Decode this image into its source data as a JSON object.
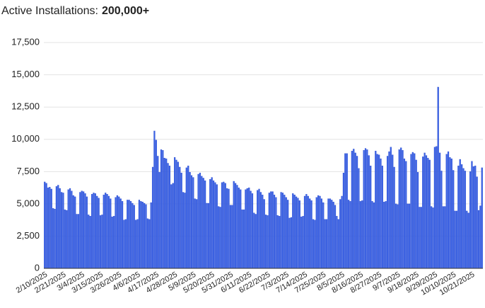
{
  "chart_data": {
    "type": "bar",
    "title": "Active Installations:",
    "total": "200,000+",
    "color": "#3b63e6",
    "grid": true,
    "ylim": [
      0,
      19700
    ],
    "yticks": [
      0,
      {
        "value": 2500,
        "label": "2,500"
      },
      {
        "value": 5000,
        "label": "5,000"
      },
      {
        "value": 7500,
        "label": "7,500"
      },
      {
        "value": 10000,
        "label": "10,000"
      },
      {
        "value": 12500,
        "label": "12,500"
      },
      {
        "value": 15000,
        "label": "15,000"
      },
      {
        "value": 17500,
        "label": "17,500"
      }
    ],
    "categories": [
      "2/10/2025",
      null,
      null,
      null,
      null,
      null,
      null,
      null,
      null,
      null,
      null,
      "2/21/2025",
      null,
      null,
      null,
      null,
      null,
      null,
      null,
      null,
      null,
      null,
      "3/4/2025",
      null,
      null,
      null,
      null,
      null,
      null,
      null,
      null,
      null,
      null,
      "3/15/2025",
      null,
      null,
      null,
      null,
      null,
      null,
      null,
      null,
      null,
      null,
      "3/26/2025",
      null,
      null,
      null,
      null,
      null,
      null,
      null,
      null,
      null,
      null,
      "4/6/2025",
      null,
      null,
      null,
      null,
      null,
      null,
      null,
      null,
      null,
      null,
      "4/17/2025",
      null,
      null,
      null,
      null,
      null,
      null,
      null,
      null,
      null,
      null,
      "4/28/2025",
      null,
      null,
      null,
      null,
      null,
      null,
      null,
      null,
      null,
      null,
      "5/9/2025",
      null,
      null,
      null,
      null,
      null,
      null,
      null,
      null,
      null,
      null,
      "5/20/2025",
      null,
      null,
      null,
      null,
      null,
      null,
      null,
      null,
      null,
      null,
      "5/31/2025",
      null,
      null,
      null,
      null,
      null,
      null,
      null,
      null,
      null,
      null,
      "6/11/2025",
      null,
      null,
      null,
      null,
      null,
      null,
      null,
      null,
      null,
      null,
      "6/22/2025",
      null,
      null,
      null,
      null,
      null,
      null,
      null,
      null,
      null,
      null,
      "7/3/2025",
      null,
      null,
      null,
      null,
      null,
      null,
      null,
      null,
      null,
      null,
      "7/14/2025",
      null,
      null,
      null,
      null,
      null,
      null,
      null,
      null,
      null,
      null,
      "7/25/2025",
      null,
      null,
      null,
      null,
      null,
      null,
      null,
      null,
      null,
      null,
      "8/5/2025",
      null,
      null,
      null,
      null,
      null,
      null,
      null,
      null,
      null,
      null,
      "8/16/2025",
      null,
      null,
      null,
      null,
      null,
      null,
      null,
      null,
      null,
      null,
      "8/27/2025",
      null,
      null,
      null,
      null,
      null,
      null,
      null,
      null,
      null,
      null,
      "9/7/2025",
      null,
      null,
      null,
      null,
      null,
      null,
      null,
      null,
      null,
      null,
      "9/18/2025",
      null,
      null,
      null,
      null,
      null,
      null,
      null,
      null,
      null,
      null,
      "9/29/2025",
      null,
      null,
      null,
      null,
      null,
      null,
      null,
      null,
      null,
      null,
      "10/10/2025",
      null,
      null,
      null,
      null,
      null,
      null,
      null,
      null,
      null,
      null,
      "10/21/2025",
      null,
      null,
      null,
      null,
      null,
      null
    ],
    "values": [
      6700,
      6600,
      6250,
      6300,
      6150,
      4650,
      4600,
      6350,
      6450,
      6200,
      5900,
      5850,
      4550,
      4500,
      6100,
      6200,
      6000,
      5650,
      5550,
      4200,
      4200,
      5900,
      6000,
      5950,
      5800,
      5550,
      4150,
      4050,
      5750,
      5850,
      5800,
      5600,
      5450,
      4100,
      4150,
      5700,
      5850,
      5750,
      5600,
      5400,
      4000,
      4050,
      5500,
      5650,
      5550,
      5400,
      5200,
      3750,
      3800,
      5300,
      5300,
      5200,
      5050,
      4900,
      3750,
      3800,
      5300,
      5200,
      5150,
      5050,
      4950,
      3850,
      3800,
      5100,
      7850,
      10650,
      9950,
      8700,
      7450,
      9200,
      9150,
      8550,
      8500,
      8150,
      7950,
      6500,
      6600,
      8600,
      8400,
      8250,
      7850,
      7400,
      5900,
      5850,
      7800,
      7950,
      7450,
      7200,
      7050,
      5400,
      5350,
      7300,
      7400,
      7150,
      7000,
      6800,
      5050,
      5050,
      6900,
      7050,
      6800,
      6650,
      6500,
      4800,
      4750,
      6650,
      6700,
      6600,
      6200,
      6150,
      4900,
      4900,
      6750,
      6600,
      6450,
      6250,
      6100,
      4550,
      4550,
      6100,
      6200,
      6250,
      6000,
      5800,
      4300,
      4200,
      6050,
      6150,
      5900,
      5700,
      5350,
      4150,
      4100,
      5850,
      5950,
      5950,
      5700,
      5500,
      4100,
      4050,
      5900,
      5850,
      5700,
      5500,
      5300,
      3900,
      3950,
      5800,
      5700,
      5550,
      5450,
      5250,
      4000,
      4050,
      5600,
      5750,
      5600,
      5400,
      5250,
      3800,
      3750,
      5500,
      5650,
      5600,
      5400,
      5100,
      3800,
      3800,
      5400,
      5400,
      5300,
      5150,
      4900,
      4050,
      3800,
      5350,
      5600,
      7400,
      8900,
      8900,
      5300,
      5200,
      9100,
      9250,
      8950,
      8700,
      7750,
      5200,
      5250,
      9150,
      9300,
      9200,
      8750,
      7950,
      5200,
      5100,
      9100,
      8850,
      8800,
      8500,
      7950,
      5150,
      5200,
      8700,
      9050,
      9400,
      8800,
      7850,
      5000,
      4950,
      9200,
      9350,
      9150,
      8500,
      8300,
      5000,
      5000,
      8850,
      9000,
      8900,
      8400,
      7450,
      4750,
      4750,
      8650,
      8950,
      8750,
      8550,
      8400,
      4800,
      4700,
      9400,
      9450,
      14050,
      8950,
      7550,
      4800,
      4800,
      8850,
      9050,
      8600,
      8500,
      7600,
      4450,
      4450,
      7950,
      8450,
      8050,
      7750,
      7550,
      4450,
      4300,
      7500,
      8300,
      7900,
      7950,
      7100,
      4500,
      4850,
      7800
    ]
  }
}
